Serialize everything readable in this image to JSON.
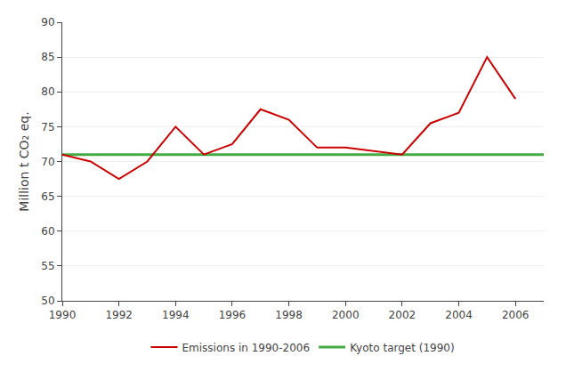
{
  "chart_data": {
    "type": "line",
    "x": [
      1990,
      1991,
      1992,
      1993,
      1994,
      1995,
      1996,
      1997,
      1998,
      1999,
      2000,
      2001,
      2002,
      2003,
      2004,
      2005,
      2006
    ],
    "series": [
      {
        "name": "Emissions in 1990-2006",
        "color": "#cc0000",
        "values": [
          71.0,
          70.0,
          67.5,
          70.0,
          75.0,
          71.0,
          72.5,
          77.5,
          76.0,
          72.0,
          72.0,
          71.5,
          71.0,
          75.5,
          77.0,
          85.0,
          79.0
        ]
      },
      {
        "name": "Kyoto target (1990)",
        "color": "#44aa44",
        "type": "hline",
        "value": 71.0
      }
    ],
    "ylabel": "Million t CO₂ eq.",
    "xlim": [
      1990,
      2007
    ],
    "xticks": [
      1990,
      1992,
      1994,
      1996,
      1998,
      2000,
      2002,
      2004,
      2006
    ],
    "ylim": [
      50,
      90
    ],
    "yticks": [
      50,
      55,
      60,
      65,
      70,
      75,
      80,
      85,
      90
    ],
    "grid": "y",
    "legend": "bottom"
  }
}
